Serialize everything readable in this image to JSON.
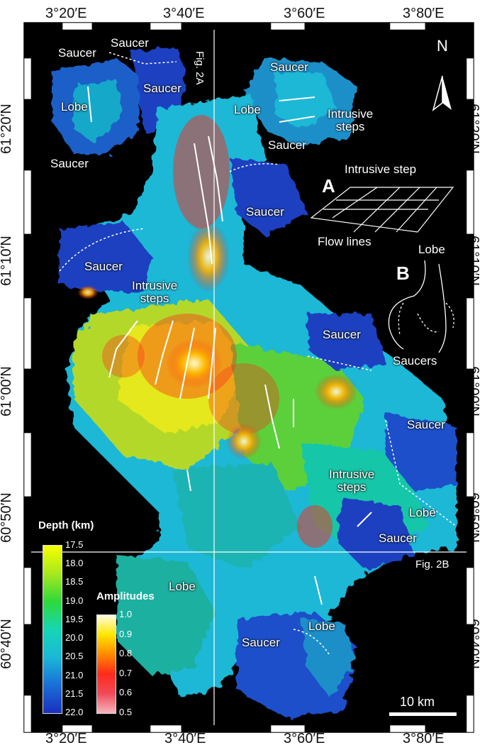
{
  "frame": {
    "top_labels": [
      "3°20′E",
      "3°40′E",
      "3°60′E",
      "3°80′E"
    ],
    "bottom_labels": [
      "3°20′E",
      "3°40′E",
      "3°60′E",
      "3°80′E"
    ],
    "left_labels": [
      "61°20′N",
      "61°10′N",
      "61°00′N",
      "60°50′N",
      "60°40′N"
    ],
    "right_labels": [
      "61°20′N",
      "61°10′N",
      "61°00′N",
      "60°50′N",
      "60°40′N"
    ]
  },
  "map": {
    "north_label": "N",
    "section_lines": {
      "vertical": "Fig. 2A",
      "horizontal": "Fig. 2B"
    },
    "features": {
      "saucer": "Saucer",
      "saucers": "Saucers",
      "lobe": "Lobe",
      "intrusive_steps": "Intrusive\nsteps",
      "intrusive_step": "Intrusive step",
      "flow_lines": "Flow lines"
    },
    "inset_a": "A",
    "inset_b": "B",
    "scale_bar": "10 km"
  },
  "legend": {
    "depth": {
      "title": "Depth (km)",
      "ticks": [
        "17.5",
        "18.0",
        "18.5",
        "19.0",
        "19.5",
        "20.0",
        "20.5",
        "21.0",
        "21.5",
        "22.0"
      ],
      "colors": [
        "#f6ff00",
        "#a8e81e",
        "#2fd93a",
        "#16d6b3",
        "#1ab8d6",
        "#1a6fd6",
        "#1a2fbf"
      ]
    },
    "amplitudes": {
      "title": "Amplitudes",
      "ticks": [
        "1.0",
        "0.9",
        "0.8",
        "0.7",
        "0.6",
        "0.5"
      ],
      "colors": [
        "#fffde0",
        "#ffe600",
        "#ff8a00",
        "#ff2a1a",
        "#f04a5a",
        "#f6b5bd"
      ]
    }
  }
}
